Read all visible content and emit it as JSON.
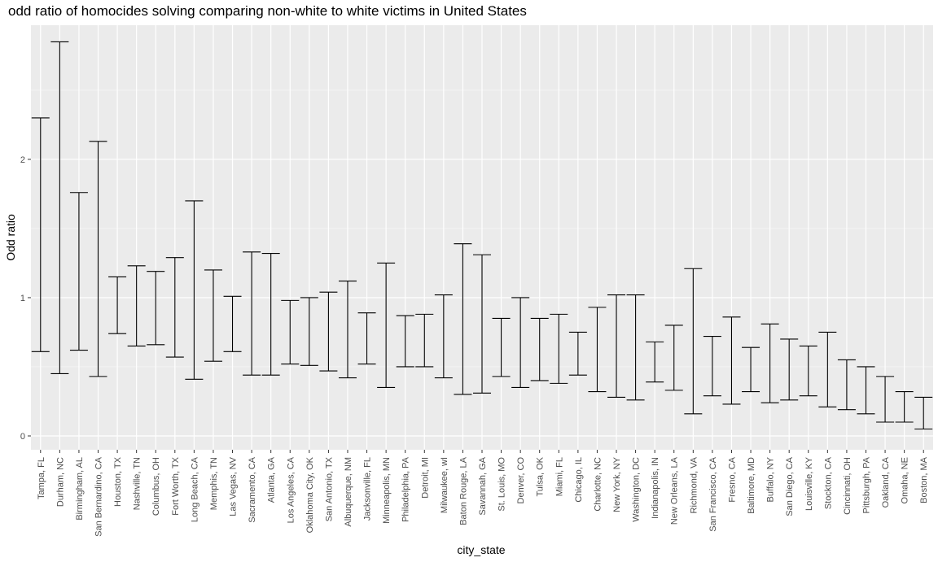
{
  "chart_data": {
    "type": "errorbar",
    "title": "odd ratio of homocides solving comparing non-white to white victims in United States",
    "xlabel": "city_state",
    "ylabel": "Odd ratio",
    "ylim": [
      -0.1,
      2.97
    ],
    "yticks": [
      0,
      1,
      2
    ],
    "grid": true,
    "categories": [
      "Tampa, FL",
      "Durham, NC",
      "Birmingham, AL",
      "San Bernardino, CA",
      "Houston, TX",
      "Nashville, TN",
      "Columbus, OH",
      "Fort Worth, TX",
      "Long Beach, CA",
      "Memphis, TN",
      "Las Vegas, NV",
      "Sacramento, CA",
      "Atlanta, GA",
      "Los Angeles, CA",
      "Oklahoma City, OK",
      "San Antonio, TX",
      "Albuquerque, NM",
      "Jacksonville, FL",
      "Minneapolis, MN",
      "Philadelphia, PA",
      "Detroit, MI",
      "Milwaukee, wI",
      "Baton Rouge, LA",
      "Savannah, GA",
      "St. Louis, MO",
      "Denver, CO",
      "Tulsa, OK",
      "Miami, FL",
      "Chicago, IL",
      "Charlotte, NC",
      "New York, NY",
      "Washington, DC",
      "Indianapolis, IN",
      "New Orleans, LA",
      "Richmond, VA",
      "San Francisco, CA",
      "Fresno, CA",
      "Baltimore, MD",
      "Buffalo, NY",
      "San Diego, CA",
      "Louisville, KY",
      "Stockton, CA",
      "Cincinnati, OH",
      "Pittsburgh, PA",
      "Oakland, CA",
      "Omaha, NE",
      "Boston, MA"
    ],
    "lower": [
      0.61,
      0.45,
      0.62,
      0.43,
      0.74,
      0.65,
      0.66,
      0.57,
      0.41,
      0.54,
      0.61,
      0.44,
      0.44,
      0.52,
      0.51,
      0.47,
      0.42,
      0.52,
      0.35,
      0.5,
      0.5,
      0.42,
      0.3,
      0.31,
      0.43,
      0.35,
      0.4,
      0.38,
      0.44,
      0.32,
      0.28,
      0.26,
      0.39,
      0.33,
      0.16,
      0.29,
      0.23,
      0.32,
      0.24,
      0.26,
      0.29,
      0.21,
      0.19,
      0.16,
      0.1,
      0.1,
      0.05
    ],
    "upper": [
      2.3,
      2.85,
      1.76,
      2.13,
      1.15,
      1.23,
      1.19,
      1.29,
      1.7,
      1.2,
      1.01,
      1.33,
      1.32,
      0.98,
      1.0,
      1.04,
      1.12,
      0.89,
      1.25,
      0.87,
      0.88,
      1.02,
      1.39,
      1.31,
      0.85,
      1.0,
      0.85,
      0.88,
      0.75,
      0.93,
      1.02,
      1.02,
      0.68,
      0.8,
      1.21,
      0.72,
      0.86,
      0.64,
      0.81,
      0.7,
      0.65,
      0.75,
      0.55,
      0.5,
      0.43,
      0.32,
      0.28
    ]
  }
}
